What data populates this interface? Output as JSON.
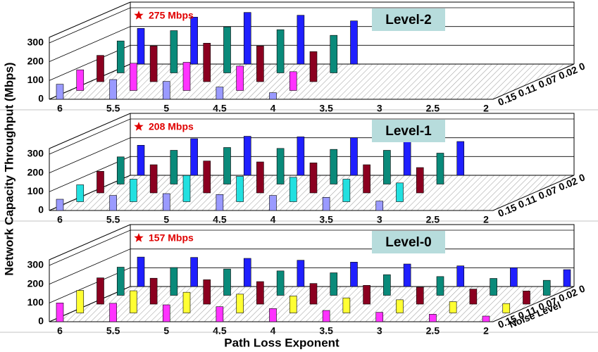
{
  "figure": {
    "ylabel": "Network Capacity Throughput (Mbps)",
    "xlabel": "Path Loss Exponent"
  },
  "chart_data": [
    {
      "type": "bar3d",
      "title": "Level-2",
      "annotation": "275 Mbps",
      "categories": [
        "6",
        "5.5",
        "5",
        "4.5",
        "4",
        "3.5",
        "3",
        "2.5",
        "2"
      ],
      "noise_levels": [
        0,
        0.02,
        0.07,
        0.11,
        0.15
      ],
      "ylim": [
        0,
        330
      ],
      "yticks": [
        0,
        100,
        200,
        300
      ],
      "series": [
        {
          "color": "#1f1fff",
          "values": [
            190,
            250,
            275,
            260,
            230,
            0,
            0,
            0,
            0
          ]
        },
        {
          "color": "#0a8a7a",
          "values": [
            170,
            225,
            245,
            230,
            200,
            0,
            0,
            0,
            0
          ]
        },
        {
          "color": "#8b0020",
          "values": [
            140,
            190,
            205,
            190,
            160,
            0,
            0,
            0,
            0
          ]
        },
        {
          "color": "#ff33ff",
          "values": [
            110,
            145,
            150,
            130,
            100,
            0,
            0,
            0,
            0
          ]
        },
        {
          "color": "#9a9aff",
          "values": [
            80,
            105,
            95,
            65,
            35,
            0,
            0,
            0,
            0
          ]
        }
      ]
    },
    {
      "type": "bar3d",
      "title": "Level-1",
      "annotation": "208 Mbps",
      "categories": [
        "6",
        "5.5",
        "5",
        "4.5",
        "4",
        "3.5",
        "3",
        "2.5",
        "2"
      ],
      "noise_levels": [
        0,
        0.02,
        0.07,
        0.11,
        0.15
      ],
      "ylim": [
        0,
        330
      ],
      "yticks": [
        0,
        100,
        200,
        300
      ],
      "series": [
        {
          "color": "#1f1fff",
          "values": [
            160,
            195,
            208,
            205,
            200,
            195,
            180,
            0,
            0
          ]
        },
        {
          "color": "#0a8a7a",
          "values": [
            145,
            180,
            195,
            190,
            185,
            180,
            165,
            0,
            0
          ]
        },
        {
          "color": "#8b0020",
          "values": [
            115,
            150,
            170,
            165,
            160,
            150,
            135,
            0,
            0
          ]
        },
        {
          "color": "#22e0e0",
          "values": [
            90,
            120,
            140,
            135,
            130,
            120,
            100,
            0,
            0
          ]
        },
        {
          "color": "#9a9aff",
          "values": [
            60,
            80,
            90,
            85,
            80,
            70,
            50,
            0,
            0
          ]
        }
      ]
    },
    {
      "type": "bar3d",
      "title": "Level-0",
      "annotation": "157 Mbps",
      "zlabel": "Noise Level",
      "categories": [
        "6",
        "5.5",
        "5",
        "4.5",
        "4",
        "3.5",
        "3",
        "2.5",
        "2"
      ],
      "noise_levels": [
        0,
        0.02,
        0.07,
        0.11,
        0.15
      ],
      "ylim": [
        0,
        330
      ],
      "yticks": [
        0,
        100,
        200,
        300
      ],
      "series": [
        {
          "color": "#1f1fff",
          "values": [
            157,
            155,
            150,
            140,
            130,
            120,
            110,
            100,
            90
          ]
        },
        {
          "color": "#0a8a7a",
          "values": [
            150,
            148,
            140,
            130,
            120,
            110,
            100,
            90,
            80
          ]
        },
        {
          "color": "#8b0020",
          "values": [
            140,
            138,
            130,
            120,
            110,
            100,
            90,
            80,
            70
          ]
        },
        {
          "color": "#ffff33",
          "values": [
            120,
            118,
            110,
            100,
            90,
            80,
            70,
            60,
            50
          ]
        },
        {
          "color": "#ff33ff",
          "values": [
            100,
            98,
            90,
            80,
            70,
            60,
            50,
            40,
            30
          ]
        }
      ]
    }
  ]
}
